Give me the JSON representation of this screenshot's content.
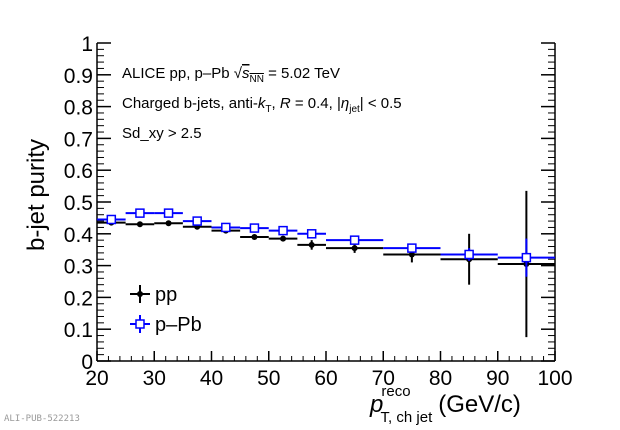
{
  "chart_data": {
    "type": "scatter",
    "ylabel": "b-jet purity",
    "xlabel_main": "p",
    "xlabel_sup": "reco",
    "xlabel_sub": "T, ch jet",
    "xlabel_unit": "(GeV/c)",
    "xlim": [
      20,
      100
    ],
    "ylim": [
      0,
      1
    ],
    "xticks": [
      20,
      30,
      40,
      50,
      60,
      70,
      80,
      90,
      100
    ],
    "yticks": [
      "0",
      "0.1",
      "0.2",
      "0.3",
      "0.4",
      "0.5",
      "0.6",
      "0.7",
      "0.8",
      "0.9",
      "1"
    ],
    "annotations": [
      "ALICE pp, p–Pb √s_NN = 5.02 TeV",
      "Charged b-jets, anti-k_T, R = 0.4, |η_jet| < 0.5",
      "Sd_xy > 2.5"
    ],
    "bins": [
      [
        20,
        25
      ],
      [
        25,
        30
      ],
      [
        30,
        35
      ],
      [
        35,
        40
      ],
      [
        40,
        45
      ],
      [
        45,
        50
      ],
      [
        50,
        55
      ],
      [
        55,
        60
      ],
      [
        60,
        70
      ],
      [
        70,
        80
      ],
      [
        80,
        90
      ],
      [
        90,
        100
      ]
    ],
    "series": [
      {
        "name": "pp",
        "color": "#000000",
        "marker": "circle",
        "values": [
          0.435,
          0.43,
          0.433,
          0.422,
          0.41,
          0.39,
          0.385,
          0.365,
          0.355,
          0.335,
          0.32,
          0.305
        ],
        "errors": [
          0.005,
          0.005,
          0.005,
          0.006,
          0.006,
          0.007,
          0.008,
          0.015,
          0.015,
          0.025,
          0.08,
          0.23
        ]
      },
      {
        "name": "p–Pb",
        "color": "#0000ff",
        "marker": "open-square",
        "values": [
          0.445,
          0.465,
          0.465,
          0.44,
          0.42,
          0.418,
          0.41,
          0.4,
          0.38,
          0.355,
          0.335,
          0.325
        ],
        "errors": [
          0.004,
          0.004,
          0.004,
          0.005,
          0.005,
          0.005,
          0.006,
          0.006,
          0.008,
          0.01,
          0.02,
          0.06
        ]
      }
    ],
    "legend_placement": "bottom-left"
  },
  "footer": "ALI-PUB-522213"
}
